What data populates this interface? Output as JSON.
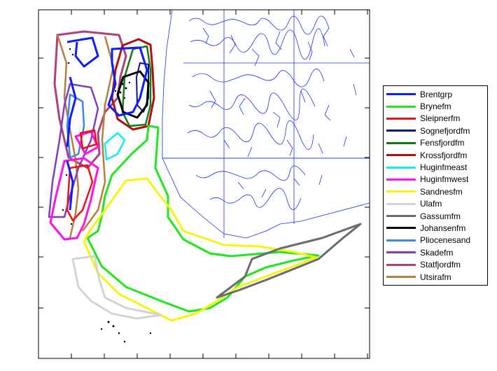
{
  "map": {
    "legend_position": "right",
    "coastline_color": "#1a2cff",
    "frame_color": "#000000",
    "legend": [
      {
        "name": "Brentgrp",
        "color": "#0b1cff"
      },
      {
        "name": "Brynefm",
        "color": "#22e61c"
      },
      {
        "name": "Sleipnerfm",
        "color": "#ee1111"
      },
      {
        "name": "Sognefjordfm",
        "color": "#0b1a80"
      },
      {
        "name": "Fensfjordfm",
        "color": "#137b13"
      },
      {
        "name": "Krossfjordfm",
        "color": "#b01010"
      },
      {
        "name": "Huginfmeast",
        "color": "#11eef0"
      },
      {
        "name": "Huginfmwest",
        "color": "#ff11ee"
      },
      {
        "name": "Sandnesfm",
        "color": "#f5f511"
      },
      {
        "name": "Ulafm",
        "color": "#d4d4d4"
      },
      {
        "name": "Gassumfm",
        "color": "#6b6b6b"
      },
      {
        "name": "Johansenfm",
        "color": "#000000"
      },
      {
        "name": "Pliocenesand",
        "color": "#3f86e6"
      },
      {
        "name": "Skadefm",
        "color": "#7d3fbf"
      },
      {
        "name": "Statfjordfm",
        "color": "#b03f7a"
      },
      {
        "name": "Utsirafm",
        "color": "#b87d3f"
      }
    ]
  }
}
